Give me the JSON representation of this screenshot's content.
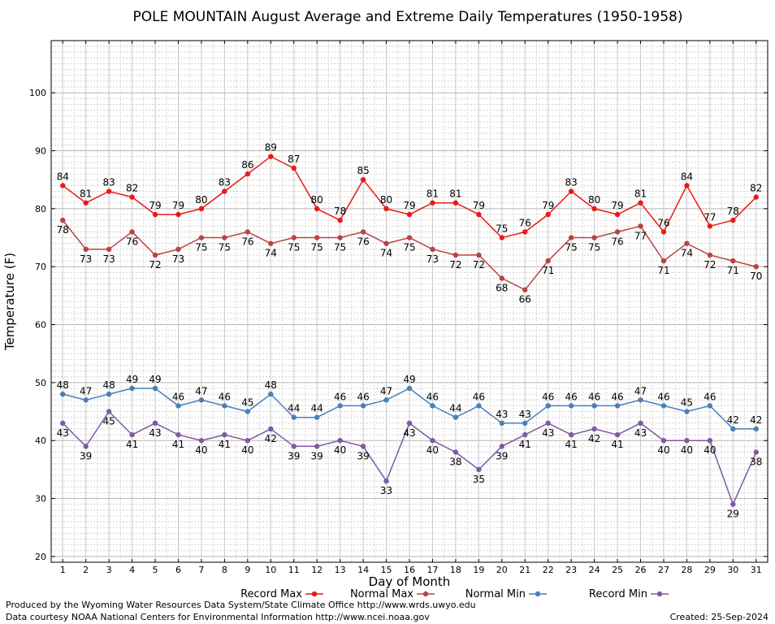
{
  "chart_data": {
    "type": "line",
    "title": "POLE MOUNTAIN August Average and Extreme Daily Temperatures (1950-1958)",
    "xlabel": "Day of Month",
    "ylabel": "Temperature (F)",
    "ylim": [
      19,
      109
    ],
    "y_ticks": [
      20,
      30,
      40,
      50,
      60,
      70,
      80,
      90,
      100
    ],
    "grid": true,
    "legend_position": "bottom",
    "x": [
      1,
      2,
      3,
      4,
      5,
      6,
      7,
      8,
      9,
      10,
      11,
      12,
      13,
      14,
      15,
      16,
      17,
      18,
      19,
      20,
      21,
      22,
      23,
      24,
      25,
      26,
      27,
      28,
      29,
      30,
      31
    ],
    "series": [
      {
        "name": "Record Max",
        "color": "#e8191a",
        "values": [
          84,
          81,
          83,
          82,
          79,
          79,
          80,
          83,
          86,
          89,
          87,
          80,
          78,
          85,
          80,
          79,
          81,
          81,
          79,
          75,
          76,
          79,
          83,
          80,
          79,
          81,
          76,
          84,
          77,
          78,
          82
        ]
      },
      {
        "name": "Normal Max",
        "color": "#b84343",
        "values": [
          78,
          73,
          73,
          76,
          72,
          73,
          75,
          75,
          76,
          74,
          75,
          75,
          75,
          76,
          74,
          75,
          73,
          72,
          72,
          68,
          66,
          71,
          75,
          75,
          76,
          77,
          71,
          74,
          72,
          71,
          70
        ]
      },
      {
        "name": "Normal Min",
        "color": "#4a7fb5",
        "values": [
          48,
          47,
          48,
          49,
          49,
          46,
          47,
          46,
          45,
          48,
          44,
          44,
          46,
          46,
          47,
          49,
          46,
          44,
          46,
          43,
          43,
          46,
          46,
          46,
          46,
          47,
          46,
          45,
          46,
          42,
          42
        ]
      },
      {
        "name": "Record Min",
        "color": "#7e5aa2",
        "values": [
          43,
          39,
          45,
          41,
          43,
          41,
          40,
          41,
          40,
          42,
          39,
          39,
          40,
          39,
          33,
          43,
          40,
          38,
          35,
          39,
          41,
          43,
          41,
          42,
          41,
          43,
          40,
          40,
          40,
          29,
          38
        ]
      }
    ]
  },
  "footer": {
    "produced_by": "Produced by the Wyoming Water Resources Data System/State Climate Office http://www.wrds.uwyo.edu",
    "courtesy": "Data courtesy NOAA National Centers for Environmental Information http://www.ncei.noaa.gov",
    "created": "Created: 25-Sep-2024"
  }
}
